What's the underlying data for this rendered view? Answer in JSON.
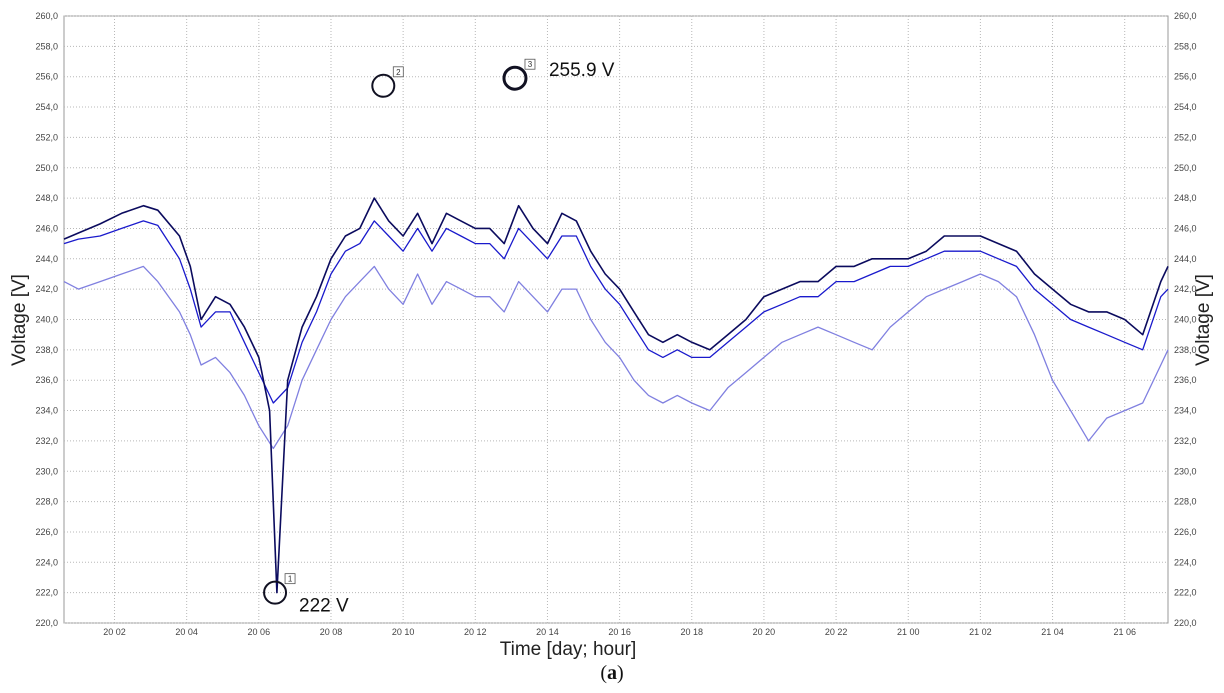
{
  "caption": {
    "open": "(",
    "letter": "a",
    "close": ")"
  },
  "chart_data": {
    "type": "line",
    "xlabel": "Time [day; hour]",
    "ylabel": "Voltage [V]",
    "y_ticks": [
      "220,0",
      "222,0",
      "224,0",
      "226,0",
      "228,0",
      "230,0",
      "232,0",
      "234,0",
      "236,0",
      "238,0",
      "240,0",
      "242,0",
      "244,0",
      "246,0",
      "248,0",
      "250,0",
      "252,0",
      "254,0",
      "256,0",
      "258,0",
      "260,0"
    ],
    "ylim": [
      220,
      260
    ],
    "x_ticks": [
      "20 02",
      "20 04",
      "20 06",
      "20 08",
      "20 10",
      "20 12",
      "20 14",
      "20 16",
      "20 18",
      "20 20",
      "20 22",
      "21 00",
      "21 02",
      "21 04",
      "21 06"
    ],
    "x_tick_hours": [
      2,
      4,
      6,
      8,
      10,
      12,
      14,
      16,
      18,
      20,
      22,
      24,
      26,
      28,
      30
    ],
    "xlim_hours": [
      0.6,
      31.2
    ],
    "grid": true,
    "colors": {
      "series_dark": "#0b0b5e",
      "series_mid": "#1a1acc",
      "series_light": "#8080e0",
      "marker": "#111122"
    },
    "series": [
      {
        "key": "dark",
        "values_hours": [
          0.6,
          1.0,
          1.6,
          2.2,
          2.8,
          3.2,
          3.8,
          4.1,
          4.4,
          4.8,
          5.2,
          5.6,
          6.0,
          6.3,
          6.5,
          6.8,
          7.2,
          7.6,
          8.0,
          8.4,
          8.8,
          9.2,
          9.6,
          10.0,
          10.4,
          10.8,
          11.2,
          11.6,
          12.0,
          12.4,
          12.8,
          13.2,
          13.6,
          14.0,
          14.4,
          14.8,
          15.2,
          15.6,
          16.0,
          16.4,
          16.8,
          17.2,
          17.6,
          18.0,
          18.5,
          19.0,
          19.5,
          20.0,
          20.5,
          21.0,
          21.5,
          22.0,
          22.5,
          23.0,
          23.5,
          24.0,
          24.5,
          25.0,
          25.5,
          26.0,
          26.5,
          27.0,
          27.5,
          28.0,
          28.5,
          29.0,
          29.5,
          30.0,
          30.5,
          31.0,
          31.2
        ],
        "values_v": [
          245.3,
          245.7,
          246.3,
          247.0,
          247.5,
          247.2,
          245.5,
          243.5,
          240.0,
          241.5,
          241.0,
          239.5,
          237.5,
          234.0,
          222.0,
          236.0,
          239.5,
          241.5,
          244.0,
          245.5,
          246.0,
          248.0,
          246.5,
          245.5,
          247.0,
          245.0,
          247.0,
          246.5,
          246.0,
          246.0,
          245.0,
          247.5,
          246.0,
          245.0,
          247.0,
          246.5,
          244.5,
          243.0,
          242.0,
          240.5,
          239.0,
          238.5,
          239.0,
          238.5,
          238.0,
          239.0,
          240.0,
          241.5,
          242.0,
          242.5,
          242.5,
          243.5,
          243.5,
          244.0,
          244.0,
          244.0,
          244.5,
          245.5,
          245.5,
          245.5,
          245.0,
          244.5,
          243.0,
          242.0,
          241.0,
          240.5,
          240.5,
          240.0,
          239.0,
          242.5,
          243.5
        ]
      },
      {
        "key": "mid",
        "values_hours": [
          0.6,
          1.0,
          1.6,
          2.2,
          2.8,
          3.2,
          3.8,
          4.1,
          4.4,
          4.8,
          5.2,
          5.6,
          6.0,
          6.4,
          6.8,
          7.2,
          7.6,
          8.0,
          8.4,
          8.8,
          9.2,
          9.6,
          10.0,
          10.4,
          10.8,
          11.2,
          11.6,
          12.0,
          12.4,
          12.8,
          13.2,
          13.6,
          14.0,
          14.4,
          14.8,
          15.2,
          15.6,
          16.0,
          16.4,
          16.8,
          17.2,
          17.6,
          18.0,
          18.5,
          19.0,
          19.5,
          20.0,
          20.5,
          21.0,
          21.5,
          22.0,
          22.5,
          23.0,
          23.5,
          24.0,
          24.5,
          25.0,
          25.5,
          26.0,
          26.5,
          27.0,
          27.5,
          28.0,
          28.5,
          29.0,
          29.5,
          30.0,
          30.5,
          31.0,
          31.2
        ],
        "values_v": [
          245.0,
          245.3,
          245.5,
          246.0,
          246.5,
          246.2,
          244.0,
          242.0,
          239.5,
          240.5,
          240.5,
          238.5,
          236.5,
          234.5,
          235.5,
          238.5,
          240.5,
          243.0,
          244.5,
          245.0,
          246.5,
          245.5,
          244.5,
          246.0,
          244.5,
          246.0,
          245.5,
          245.0,
          245.0,
          244.0,
          246.0,
          245.0,
          244.0,
          245.5,
          245.5,
          243.5,
          242.0,
          241.0,
          239.5,
          238.0,
          237.5,
          238.0,
          237.5,
          237.5,
          238.5,
          239.5,
          240.5,
          241.0,
          241.5,
          241.5,
          242.5,
          242.5,
          243.0,
          243.5,
          243.5,
          244.0,
          244.5,
          244.5,
          244.5,
          244.0,
          243.5,
          242.0,
          241.0,
          240.0,
          239.5,
          239.0,
          238.5,
          238.0,
          241.5,
          242.0
        ]
      },
      {
        "key": "light",
        "values_hours": [
          0.6,
          1.0,
          1.6,
          2.2,
          2.8,
          3.2,
          3.8,
          4.1,
          4.4,
          4.8,
          5.2,
          5.6,
          6.0,
          6.4,
          6.8,
          7.2,
          7.6,
          8.0,
          8.4,
          8.8,
          9.2,
          9.6,
          10.0,
          10.4,
          10.8,
          11.2,
          11.6,
          12.0,
          12.4,
          12.8,
          13.2,
          13.6,
          14.0,
          14.4,
          14.8,
          15.2,
          15.6,
          16.0,
          16.4,
          16.8,
          17.2,
          17.6,
          18.0,
          18.5,
          19.0,
          19.5,
          20.0,
          20.5,
          21.0,
          21.5,
          22.0,
          22.5,
          23.0,
          23.5,
          24.0,
          24.5,
          25.0,
          25.5,
          26.0,
          26.5,
          27.0,
          27.5,
          28.0,
          28.5,
          29.0,
          29.5,
          30.0,
          30.5,
          31.0,
          31.2
        ],
        "values_v": [
          242.5,
          242.0,
          242.5,
          243.0,
          243.5,
          242.5,
          240.5,
          239.0,
          237.0,
          237.5,
          236.5,
          235.0,
          233.0,
          231.5,
          233.0,
          236.0,
          238.0,
          240.0,
          241.5,
          242.5,
          243.5,
          242.0,
          241.0,
          243.0,
          241.0,
          242.5,
          242.0,
          241.5,
          241.5,
          240.5,
          242.5,
          241.5,
          240.5,
          242.0,
          242.0,
          240.0,
          238.5,
          237.5,
          236.0,
          235.0,
          234.5,
          235.0,
          234.5,
          234.0,
          235.5,
          236.5,
          237.5,
          238.5,
          239.0,
          239.5,
          239.0,
          238.5,
          238.0,
          239.5,
          240.5,
          241.5,
          242.0,
          242.5,
          243.0,
          242.5,
          241.5,
          239.0,
          236.0,
          234.0,
          232.0,
          233.5,
          234.0,
          234.5,
          237.0,
          238.0
        ]
      }
    ],
    "markers": [
      {
        "id": "1",
        "hour": 6.45,
        "value": 222.0,
        "label": "222 V"
      },
      {
        "id": "2",
        "hour": 9.45,
        "value": 255.4,
        "label": ""
      },
      {
        "id": "3",
        "hour": 13.1,
        "value": 255.9,
        "label": "255.9 V"
      }
    ]
  }
}
